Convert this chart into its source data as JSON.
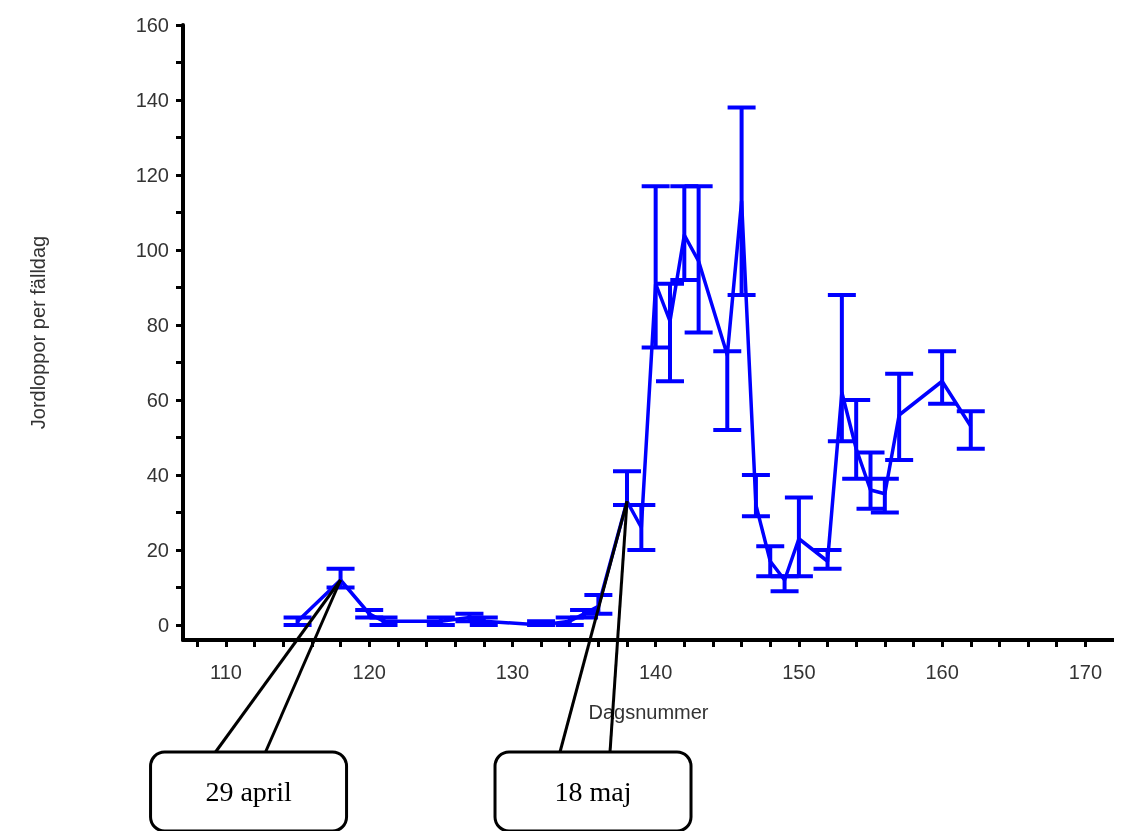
{
  "chart_data": {
    "type": "line",
    "xlabel": "Dagsnummer",
    "ylabel": "Jordloppor per fälldag",
    "x": [
      115,
      118,
      120,
      121,
      125,
      127,
      128,
      132,
      134,
      135,
      136,
      138,
      139,
      140,
      141,
      142,
      143,
      145,
      146,
      147,
      148,
      149,
      150,
      152,
      153,
      154,
      155,
      156,
      157,
      160,
      162
    ],
    "series": [
      {
        "color": "#0000ff",
        "values": [
          1,
          12,
          3,
          1,
          1,
          2,
          1,
          0,
          1,
          3,
          5,
          33,
          26,
          91,
          81,
          104,
          97,
          72,
          113,
          32,
          17,
          12,
          23,
          17,
          62,
          47,
          36,
          35,
          56,
          65,
          53
        ],
        "errors": [
          [
            0,
            2
          ],
          [
            10,
            15
          ],
          [
            2,
            4
          ],
          [
            0,
            2
          ],
          [
            0,
            2
          ],
          [
            1,
            3
          ],
          [
            0,
            2
          ],
          [
            0,
            1
          ],
          [
            0,
            2
          ],
          [
            2,
            4
          ],
          [
            3,
            8
          ],
          [
            32,
            41
          ],
          [
            20,
            32
          ],
          [
            74,
            117
          ],
          [
            65,
            91
          ],
          [
            92,
            117
          ],
          [
            78,
            117
          ],
          [
            52,
            73
          ],
          [
            88,
            138
          ],
          [
            29,
            40
          ],
          [
            13,
            21
          ],
          [
            9,
            13
          ],
          [
            13,
            34
          ],
          [
            15,
            20
          ],
          [
            49,
            88
          ],
          [
            39,
            60
          ],
          [
            31,
            46
          ],
          [
            30,
            39
          ],
          [
            44,
            67
          ],
          [
            59,
            73
          ],
          [
            47,
            57
          ]
        ]
      }
    ],
    "xlim": [
      107,
      172
    ],
    "xticks": [
      {
        "value": 108,
        "label": null
      },
      110,
      {
        "value": 112,
        "label": null
      },
      {
        "value": 114,
        "label": null
      },
      {
        "value": 116,
        "label": null
      },
      {
        "value": 118,
        "label": null
      },
      120,
      {
        "value": 122,
        "label": null
      },
      {
        "value": 124,
        "label": null
      },
      {
        "value": 126,
        "label": null
      },
      {
        "value": 128,
        "label": null
      },
      130,
      {
        "value": 132,
        "label": null
      },
      {
        "value": 134,
        "label": null
      },
      {
        "value": 136,
        "label": null
      },
      {
        "value": 138,
        "label": null
      },
      140,
      {
        "value": 142,
        "label": null
      },
      {
        "value": 144,
        "label": null
      },
      {
        "value": 146,
        "label": null
      },
      {
        "value": 148,
        "label": null
      },
      150,
      {
        "value": 152,
        "label": null
      },
      {
        "value": 154,
        "label": null
      },
      {
        "value": 156,
        "label": null
      },
      {
        "value": 158,
        "label": null
      },
      160,
      {
        "value": 162,
        "label": null
      },
      {
        "value": 164,
        "label": null
      },
      {
        "value": 166,
        "label": null
      },
      {
        "value": 168,
        "label": null
      },
      170
    ],
    "ylim": [
      -4,
      160
    ],
    "yticks": [
      0,
      {
        "value": 10,
        "label": null
      },
      20,
      {
        "value": 30,
        "label": null
      },
      40,
      {
        "value": 50,
        "label": null
      },
      60,
      {
        "value": 70,
        "label": null
      },
      80,
      {
        "value": 90,
        "label": null
      },
      100,
      {
        "value": 110,
        "label": null
      },
      120,
      {
        "value": 130,
        "label": null
      },
      140,
      {
        "value": 150,
        "label": null
      },
      160
    ],
    "grid": false,
    "marker": "none",
    "line_style": "solid",
    "annotations": [
      {
        "text": "29 april",
        "x": 118,
        "y": 12
      },
      {
        "text": "18 maj",
        "x": 138,
        "y": 33
      }
    ]
  }
}
